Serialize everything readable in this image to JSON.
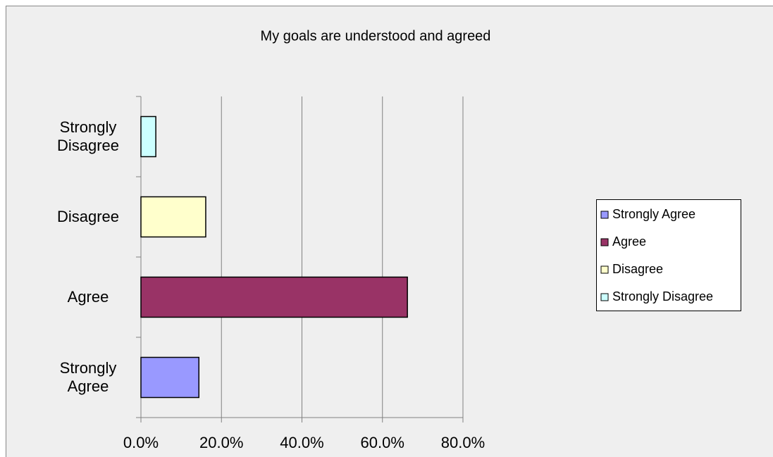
{
  "chart_data": {
    "type": "barh",
    "title": "My goals are understood and agreed",
    "categories": [
      "Strongly Agree",
      "Agree",
      "Disagree",
      "Strongly Disagree"
    ],
    "values": [
      14.4,
      66.2,
      16.1,
      3.7
    ],
    "colors": [
      "#9999ff",
      "#993366",
      "#ffffcc",
      "#ccffff"
    ],
    "xlim": [
      0,
      80
    ],
    "xticks": [
      {
        "value": 0,
        "label": "0.0%"
      },
      {
        "value": 20,
        "label": "20.0%"
      },
      {
        "value": 40,
        "label": "40.0%"
      },
      {
        "value": 60,
        "label": "60.0%"
      },
      {
        "value": 80,
        "label": "80.0%"
      }
    ],
    "grid": true,
    "legend": "right"
  }
}
